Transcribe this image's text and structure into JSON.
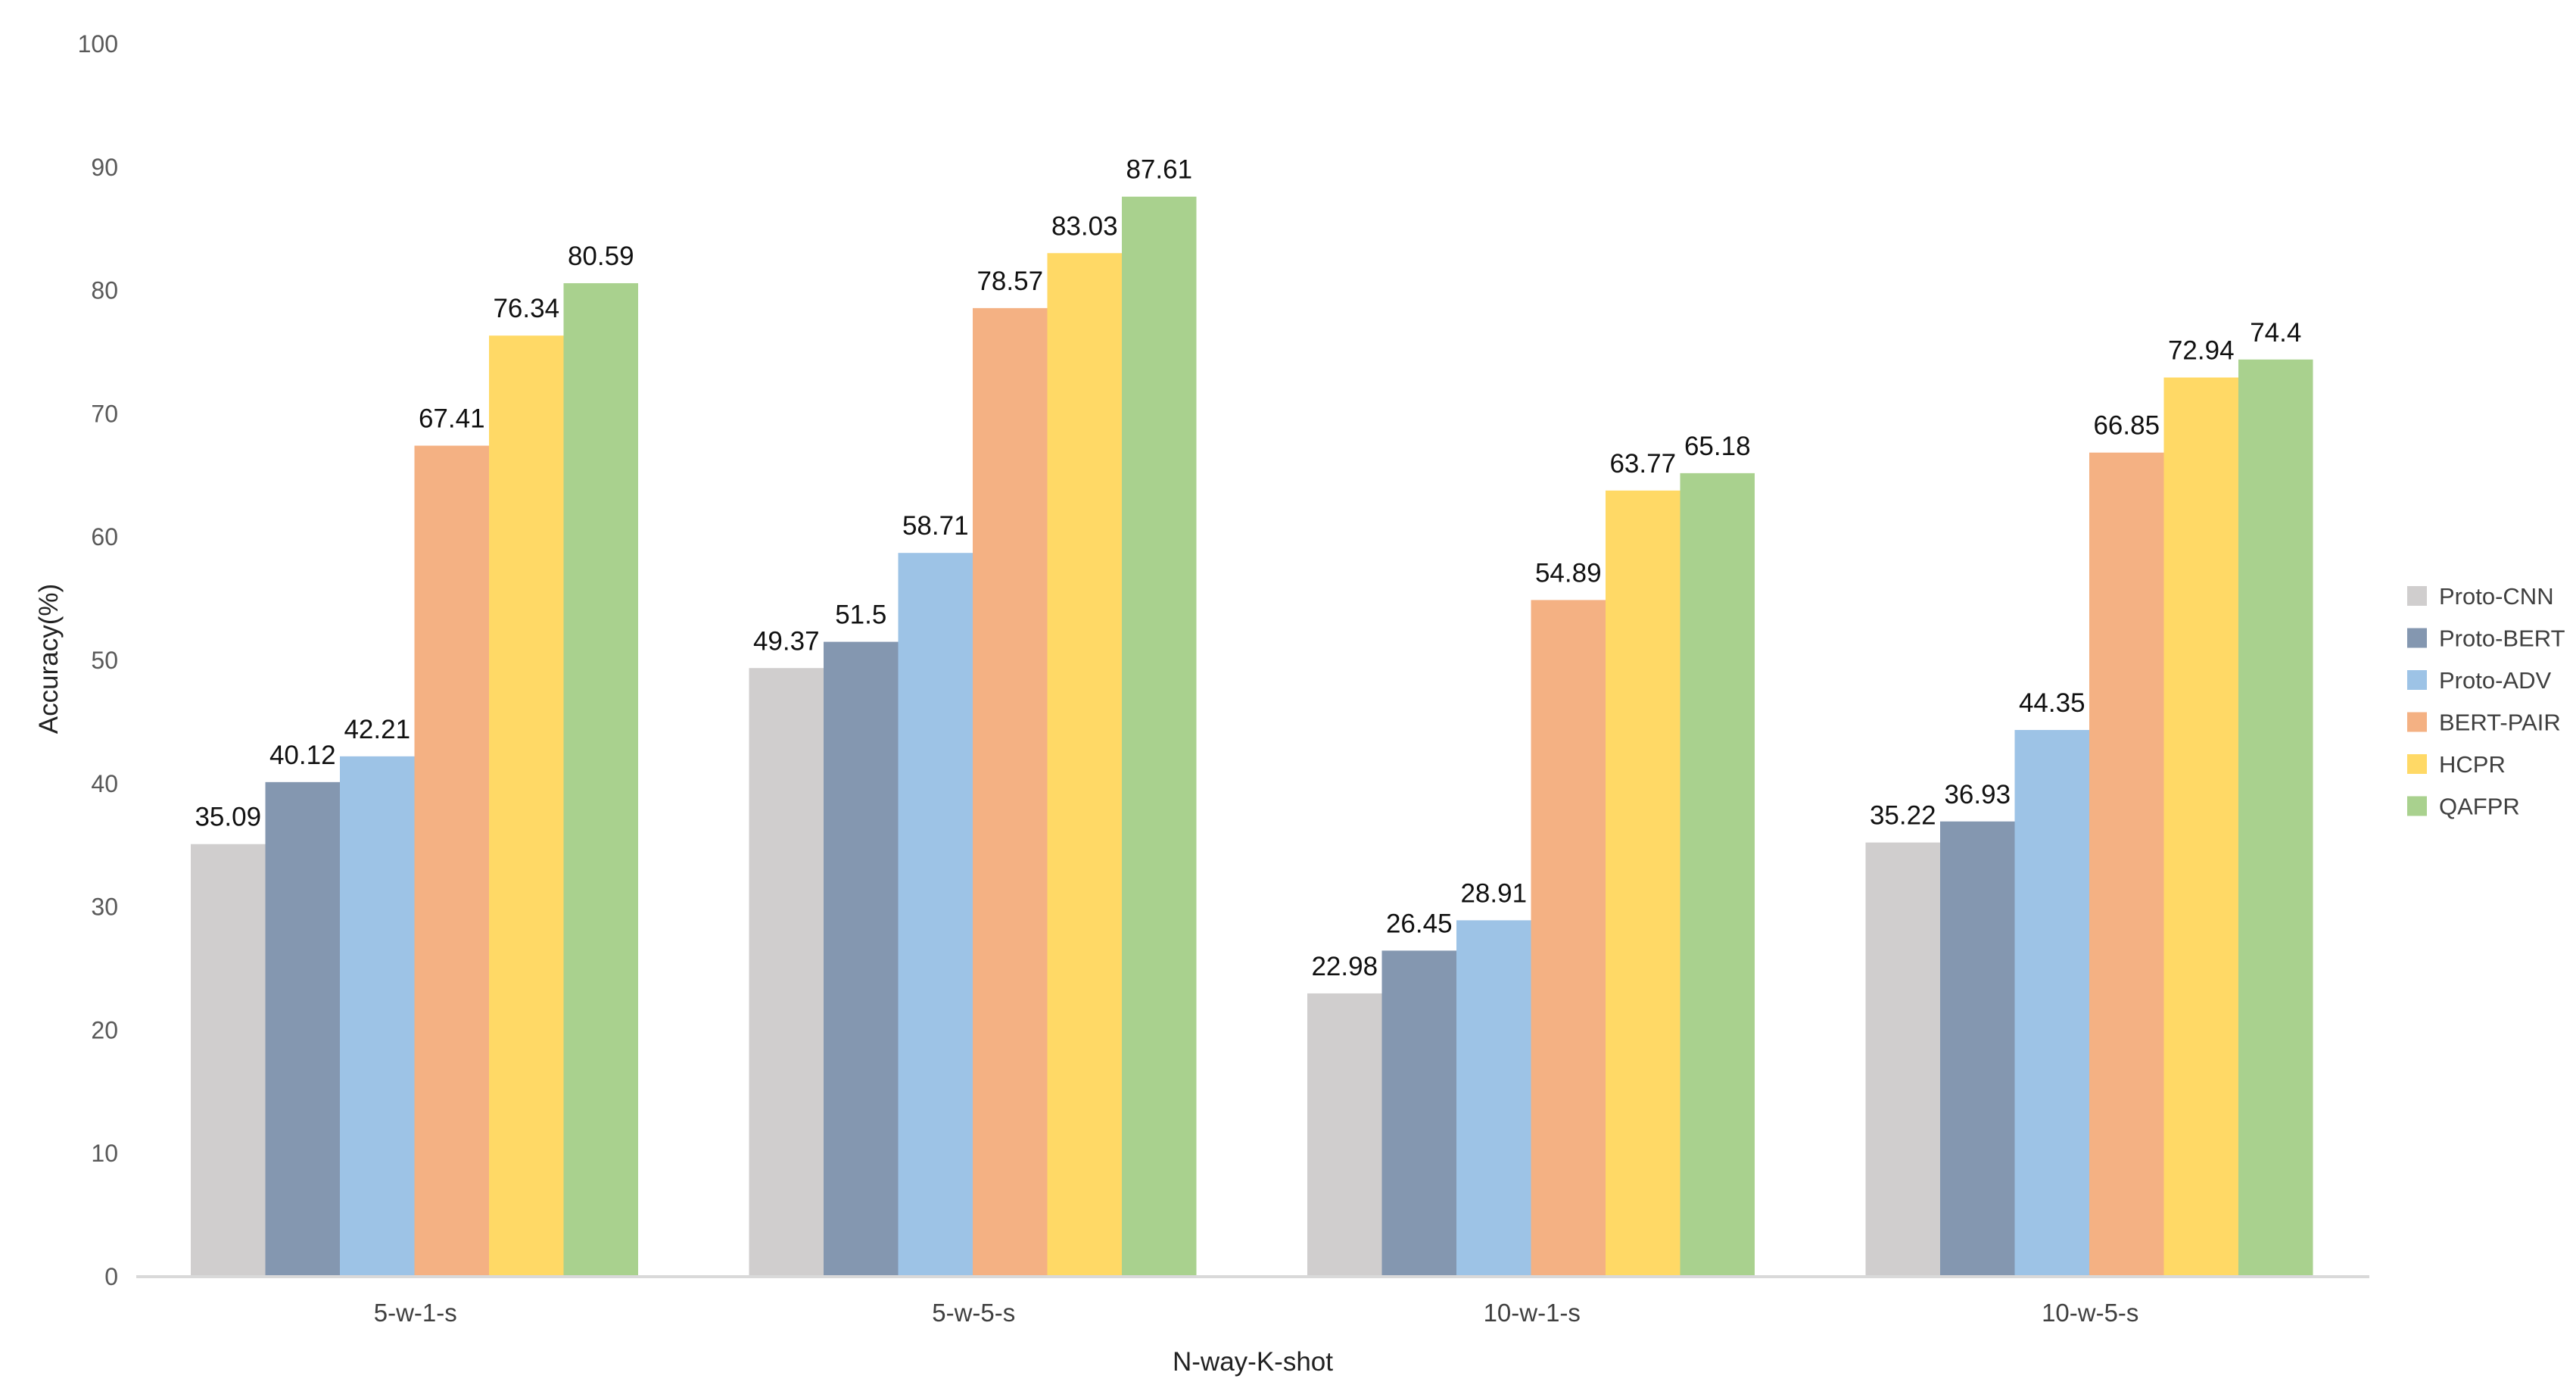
{
  "chart_data": {
    "type": "bar",
    "title": "",
    "xlabel": "N-way-K-shot",
    "ylabel": "Accuracy(%)",
    "ylim": [
      0,
      100
    ],
    "yticks": [
      0,
      10,
      20,
      30,
      40,
      50,
      60,
      70,
      80,
      90,
      100
    ],
    "grid": false,
    "legend_position": "right",
    "categories": [
      "5-w-1-s",
      "5-w-5-s",
      "10-w-1-s",
      "10-w-5-s"
    ],
    "series": [
      {
        "name": "Proto-CNN",
        "color": "#D0CECE",
        "values": [
          35.09,
          49.37,
          22.98,
          35.22
        ]
      },
      {
        "name": "Proto-BERT",
        "color": "#8497B0",
        "values": [
          40.12,
          51.5,
          26.45,
          36.93
        ]
      },
      {
        "name": "Proto-ADV",
        "color": "#9DC3E6",
        "values": [
          42.21,
          58.71,
          28.91,
          44.35
        ]
      },
      {
        "name": "BERT-PAIR",
        "color": "#F4B183",
        "values": [
          67.41,
          78.57,
          54.89,
          66.85
        ]
      },
      {
        "name": "HCPR",
        "color": "#FFD966",
        "values": [
          76.34,
          83.03,
          63.77,
          72.94
        ]
      },
      {
        "name": "QAFPR",
        "color": "#A9D18E",
        "values": [
          80.59,
          87.61,
          65.18,
          74.4
        ]
      }
    ],
    "axis_line_color": "#D9D9D9"
  }
}
